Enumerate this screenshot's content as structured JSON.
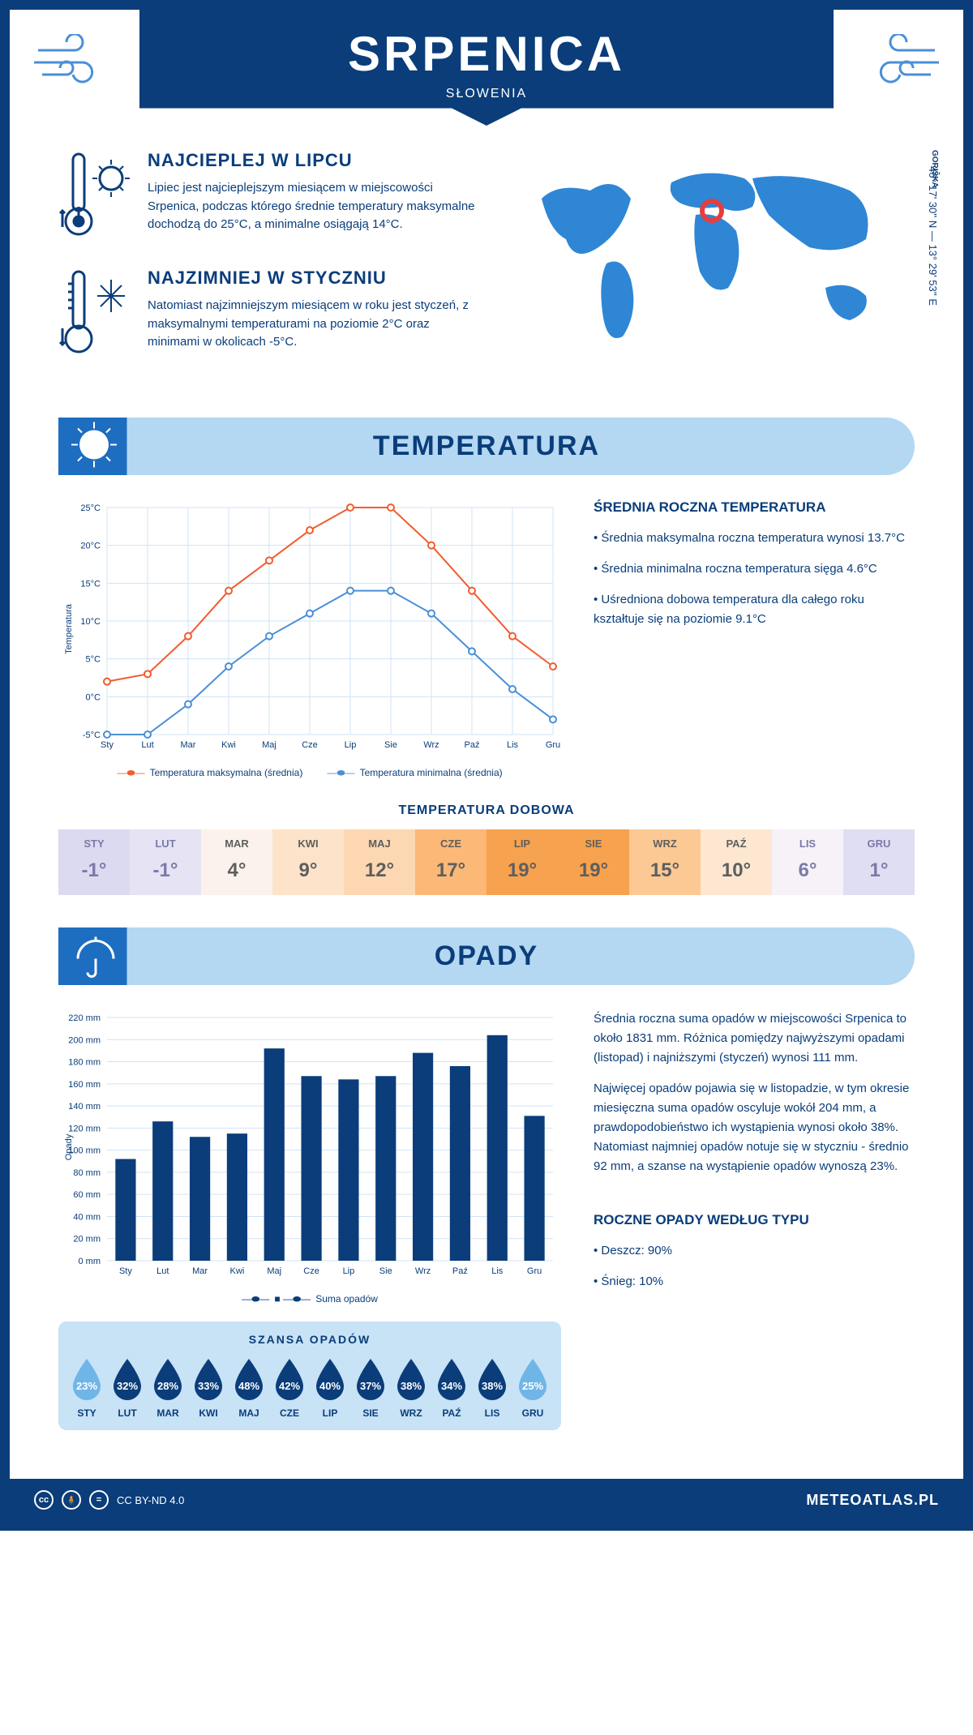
{
  "header": {
    "title": "SRPENICA",
    "country": "SŁOWENIA"
  },
  "location": {
    "region": "GORIŠKA",
    "coords": "46° 17' 30'' N — 13° 29' 53'' E"
  },
  "warmest": {
    "title": "NAJCIEPLEJ W LIPCU",
    "text": "Lipiec jest najcieplejszym miesiącem w miejscowości Srpenica, podczas którego średnie temperatury maksymalne dochodzą do 25°C, a minimalne osiągają 14°C."
  },
  "coldest": {
    "title": "NAJZIMNIEJ W STYCZNIU",
    "text": "Natomiast najzimniejszym miesiącem w roku jest styczeń, z maksymalnymi temperaturami na poziomie 2°C oraz minimami w okolicach -5°C."
  },
  "section_temp_title": "TEMPERATURA",
  "temp_chart": {
    "type": "line",
    "months": [
      "Sty",
      "Lut",
      "Mar",
      "Kwi",
      "Maj",
      "Cze",
      "Lip",
      "Sie",
      "Wrz",
      "Paź",
      "Lis",
      "Gru"
    ],
    "max": [
      2,
      3,
      8,
      14,
      18,
      22,
      25,
      25,
      20,
      14,
      8,
      4
    ],
    "min": [
      -5,
      -5,
      -1,
      4,
      8,
      11,
      14,
      14,
      11,
      6,
      1,
      -3
    ],
    "ylim": [
      -5,
      25
    ],
    "ytick_step": 5,
    "ylabel": "Temperatura",
    "max_color": "#f25c2e",
    "min_color": "#4a8fd8",
    "grid_color": "#d0e3f5",
    "axis_color": "#0a3d7a",
    "legend_max": "Temperatura maksymalna (średnia)",
    "legend_min": "Temperatura minimalna (średnia)",
    "axis_fontsize": 11
  },
  "temp_summary": {
    "title": "ŚREDNIA ROCZNA TEMPERATURA",
    "b1": "• Średnia maksymalna roczna temperatura wynosi 13.7°C",
    "b2": "• Średnia minimalna roczna temperatura sięga 4.6°C",
    "b3": "• Uśredniona dobowa temperatura dla całego roku kształtuje się na poziomie 9.1°C"
  },
  "daily_temp": {
    "title": "TEMPERATURA DOBOWA",
    "months": [
      "STY",
      "LUT",
      "MAR",
      "KWI",
      "MAJ",
      "CZE",
      "LIP",
      "SIE",
      "WRZ",
      "PAŹ",
      "LIS",
      "GRU"
    ],
    "values": [
      "-1°",
      "-1°",
      "4°",
      "9°",
      "12°",
      "17°",
      "19°",
      "19°",
      "15°",
      "10°",
      "6°",
      "1°"
    ],
    "bg_colors": [
      "#dcdaf0",
      "#e5e3f4",
      "#fbf3eb",
      "#fde3c9",
      "#fcd7b2",
      "#fbb877",
      "#f7a24f",
      "#f7a24f",
      "#fcc995",
      "#fde7d1",
      "#f6f2f8",
      "#e0def2"
    ],
    "text_colors": [
      "#7a7aa8",
      "#7a7aa8",
      "#5e5e5e",
      "#5e5e5e",
      "#5e5e5e",
      "#5e5e5e",
      "#5e5e5e",
      "#5e5e5e",
      "#5e5e5e",
      "#5e5e5e",
      "#7a7aa8",
      "#7a7aa8"
    ]
  },
  "section_rain_title": "OPADY",
  "rain_chart": {
    "type": "bar",
    "months": [
      "Sty",
      "Lut",
      "Mar",
      "Kwi",
      "Maj",
      "Cze",
      "Lip",
      "Sie",
      "Wrz",
      "Paź",
      "Lis",
      "Gru"
    ],
    "values": [
      92,
      126,
      112,
      115,
      192,
      167,
      164,
      167,
      188,
      176,
      204,
      131
    ],
    "ylim": [
      0,
      220
    ],
    "ytick_step": 20,
    "ylabel": "Opady",
    "bar_color": "#0a3d7a",
    "grid_color": "#d0e3f5",
    "legend": "Suma opadów",
    "axis_fontsize": 11
  },
  "rain_text": {
    "p1": "Średnia roczna suma opadów w miejscowości Srpenica to około 1831 mm. Różnica pomiędzy najwyższymi opadami (listopad) i najniższymi (styczeń) wynosi 111 mm.",
    "p2": "Najwięcej opadów pojawia się w listopadzie, w tym okresie miesięczna suma opadów oscyluje wokół 204 mm, a prawdopodobieństwo ich wystąpienia wynosi około 38%. Natomiast najmniej opadów notuje się w styczniu - średnio 92 mm, a szanse na wystąpienie opadów wynoszą 23%."
  },
  "rain_chance": {
    "title": "SZANSA OPADÓW",
    "months": [
      "STY",
      "LUT",
      "MAR",
      "KWI",
      "MAJ",
      "CZE",
      "LIP",
      "SIE",
      "WRZ",
      "PAŹ",
      "LIS",
      "GRU"
    ],
    "percents": [
      "23%",
      "32%",
      "28%",
      "33%",
      "48%",
      "42%",
      "40%",
      "37%",
      "38%",
      "34%",
      "38%",
      "25%"
    ],
    "drop_colors": [
      "#6fb5e8",
      "#0a3d7a",
      "#0a3d7a",
      "#0a3d7a",
      "#0a3d7a",
      "#0a3d7a",
      "#0a3d7a",
      "#0a3d7a",
      "#0a3d7a",
      "#0a3d7a",
      "#0a3d7a",
      "#6fb5e8"
    ]
  },
  "rain_by_type": {
    "title": "ROCZNE OPADY WEDŁUG TYPU",
    "l1": "• Deszcz: 90%",
    "l2": "• Śnieg: 10%"
  },
  "footer": {
    "license": "CC BY-ND 4.0",
    "site": "METEOATLAS.PL"
  }
}
